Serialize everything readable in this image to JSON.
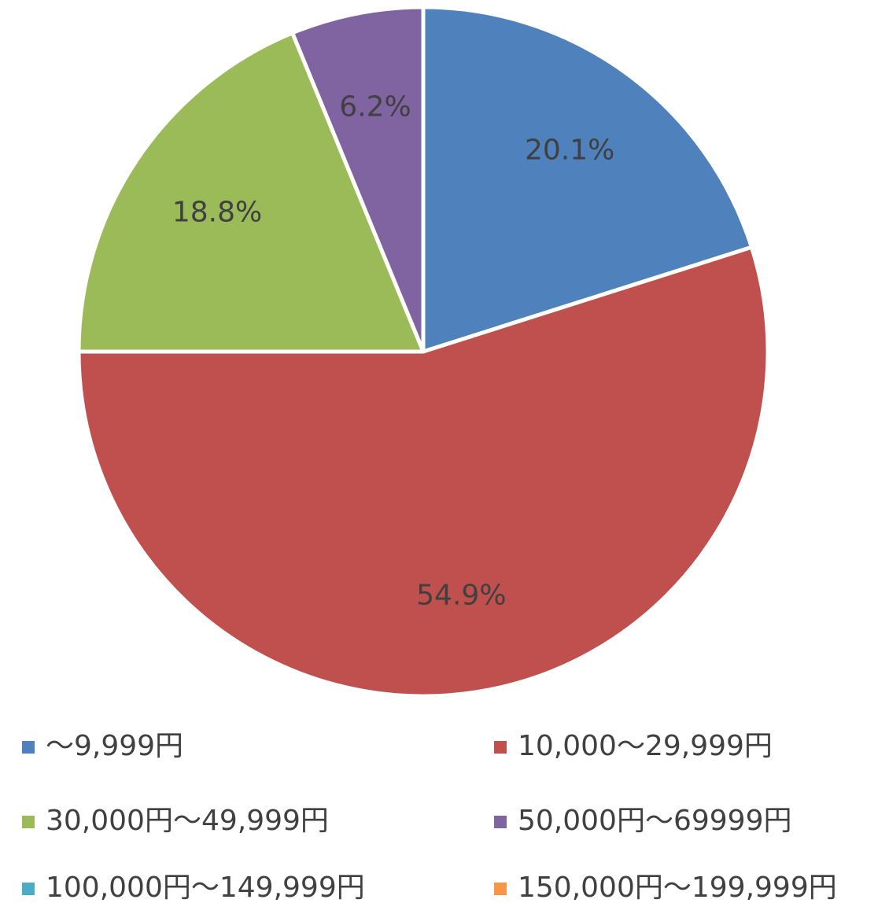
{
  "chart_data": {
    "type": "pie",
    "categories": [
      "～9,999円",
      "10,000～29,999円",
      "30,000円～49,999円",
      "50,000円～69999円",
      "100,000円～149,999円",
      "150,000円～199,999円"
    ],
    "values": [
      20.1,
      54.9,
      18.8,
      6.2,
      0,
      0
    ],
    "value_labels": [
      "20.1%",
      "54.9%",
      "18.8%",
      "6.2%",
      null,
      null
    ],
    "colors": [
      "#4f81bd",
      "#c0504d",
      "#9bbb59",
      "#8064a2",
      "#4bacc6",
      "#f79646"
    ],
    "legend": "bottom"
  }
}
